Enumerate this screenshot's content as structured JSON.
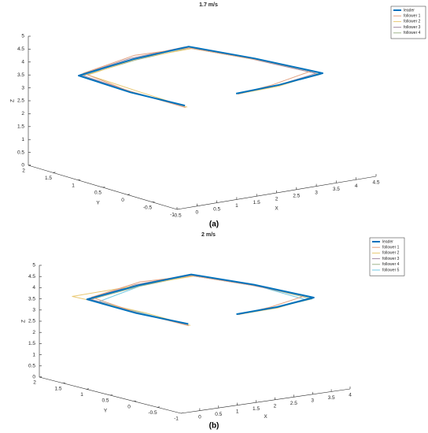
{
  "chart_data": [
    {
      "type": "line3d",
      "title": "1.7 m/s",
      "caption": "(a)",
      "xlabel": "X",
      "ylabel": "Y",
      "zlabel": "Z",
      "xlim": [
        -0.5,
        4.5
      ],
      "xticks": [
        -0.5,
        0,
        0.5,
        1,
        1.5,
        2,
        2.5,
        3,
        3.5,
        4,
        4.5
      ],
      "ylim": [
        -1,
        2
      ],
      "yticks": [
        -1,
        -0.5,
        0,
        0.5,
        1,
        1.5,
        2
      ],
      "zlim": [
        0,
        5
      ],
      "zticks": [
        0,
        0.5,
        1,
        1.5,
        2,
        2.5,
        3,
        3.5,
        4,
        4.5,
        5
      ],
      "legend": "upper right",
      "series": [
        {
          "name": "leader",
          "color": "#0072bd",
          "width": 2,
          "x": [
            0.36,
            0.2,
            0.13,
            1.2,
            2.22,
            3.2,
            4.19,
            3.0,
            1.83
          ],
          "y": [
            -0.47,
            0.5,
            1.49,
            1.25,
            0.95,
            0.4,
            -0.17,
            -0.25,
            -0.32
          ],
          "z": [
            3.5,
            3.5,
            3.6,
            4.1,
            4.5,
            4.1,
            3.6,
            3.5,
            3.5
          ]
        },
        {
          "name": "follower 1",
          "color": "#e3a07e",
          "width": 1,
          "x": [
            0.4,
            0.25,
            0.2,
            1.3,
            2.3,
            3.3,
            4.0,
            2.9,
            1.9
          ],
          "y": [
            -0.45,
            0.6,
            1.45,
            1.3,
            1.0,
            0.45,
            -0.1,
            -0.2,
            -0.3
          ],
          "z": [
            3.4,
            3.5,
            3.7,
            4.2,
            4.4,
            4.0,
            3.7,
            3.5,
            3.45
          ]
        },
        {
          "name": "follower 2",
          "color": "#e9c872",
          "width": 1,
          "x": [
            0.38,
            0.3,
            0.25,
            1.25,
            2.25,
            3.25,
            4.1,
            2.95,
            1.85
          ],
          "y": [
            -0.5,
            0.4,
            1.4,
            1.2,
            0.9,
            0.35,
            -0.2,
            -0.3,
            -0.35
          ],
          "z": [
            3.45,
            3.55,
            3.65,
            4.15,
            4.45,
            4.05,
            3.65,
            3.5,
            3.5
          ]
        },
        {
          "name": "follower 3",
          "color": "#a38ca3",
          "width": 1,
          "x": [
            0.42,
            0.28,
            0.18,
            1.15,
            2.15,
            3.15,
            4.05,
            3.05,
            1.95
          ],
          "y": [
            -0.42,
            0.55,
            1.5,
            1.28,
            0.98,
            0.42,
            -0.15,
            -0.22,
            -0.28
          ],
          "z": [
            3.42,
            3.48,
            3.62,
            4.12,
            4.48,
            4.08,
            3.62,
            3.48,
            3.46
          ]
        },
        {
          "name": "follower 4",
          "color": "#9cb38c",
          "width": 1,
          "x": [
            0.35,
            0.22,
            0.16,
            1.22,
            2.2,
            3.22,
            4.12,
            3.02,
            1.88
          ],
          "y": [
            -0.48,
            0.52,
            1.47,
            1.22,
            0.93,
            0.38,
            -0.18,
            -0.27,
            -0.33
          ],
          "z": [
            3.47,
            3.52,
            3.58,
            4.08,
            4.46,
            4.06,
            3.58,
            3.52,
            3.48
          ]
        }
      ]
    },
    {
      "type": "line3d",
      "title": "2 m/s",
      "caption": "(b)",
      "xlabel": "X",
      "ylabel": "Y",
      "zlabel": "Z",
      "xlim": [
        -0.5,
        4
      ],
      "xticks": [
        0,
        0.5,
        1,
        1.5,
        2,
        2.5,
        3,
        3.5,
        4
      ],
      "ylim": [
        -1,
        2
      ],
      "yticks": [
        -1,
        -0.5,
        0,
        0.5,
        1,
        1.5,
        2
      ],
      "zlim": [
        0,
        5
      ],
      "zticks": [
        0,
        0.5,
        1,
        1.5,
        2,
        2.5,
        3,
        3.5,
        4,
        4.5,
        5
      ],
      "legend": "upper right",
      "series": [
        {
          "name": "leader",
          "color": "#0072bd",
          "width": 2,
          "x": [
            0.36,
            0.2,
            0.13,
            1.2,
            2.22,
            3.2,
            4.1,
            3.0,
            1.83
          ],
          "y": [
            -0.47,
            0.5,
            1.49,
            1.25,
            0.95,
            0.4,
            -0.15,
            -0.25,
            -0.32
          ],
          "z": [
            3.5,
            3.5,
            3.6,
            4.1,
            4.5,
            4.1,
            3.6,
            3.5,
            3.5
          ]
        },
        {
          "name": "follower 1",
          "color": "#e3a07e",
          "width": 1,
          "x": [
            0.4,
            0.25,
            0.2,
            1.3,
            2.3,
            3.3,
            3.95,
            2.9,
            1.9
          ],
          "y": [
            -0.45,
            0.6,
            1.45,
            1.3,
            1.0,
            0.45,
            -0.1,
            -0.2,
            -0.3
          ],
          "z": [
            3.4,
            3.5,
            3.7,
            4.2,
            4.4,
            4.0,
            3.7,
            3.5,
            3.45
          ]
        },
        {
          "name": "follower 2",
          "color": "#e9c872",
          "width": 1,
          "x": [
            0.38,
            0.3,
            0.0,
            1.25,
            2.25,
            3.25,
            4.0,
            2.95,
            1.85
          ],
          "y": [
            -0.5,
            0.4,
            1.7,
            1.2,
            0.9,
            0.35,
            -0.2,
            -0.3,
            -0.35
          ],
          "z": [
            3.45,
            3.55,
            3.65,
            4.15,
            4.45,
            4.05,
            3.65,
            3.5,
            3.5
          ]
        },
        {
          "name": "follower 3",
          "color": "#a38ca3",
          "width": 1,
          "x": [
            0.42,
            0.28,
            0.18,
            1.15,
            2.15,
            3.15,
            4.05,
            3.05,
            1.95
          ],
          "y": [
            -0.42,
            0.55,
            1.5,
            1.28,
            0.98,
            0.42,
            -0.15,
            -0.22,
            -0.28
          ],
          "z": [
            3.42,
            3.48,
            3.62,
            4.12,
            4.48,
            4.08,
            3.62,
            3.48,
            3.46
          ]
        },
        {
          "name": "follower 4",
          "color": "#9cb38c",
          "width": 1,
          "x": [
            0.35,
            0.22,
            0.16,
            1.22,
            2.2,
            3.22,
            4.02,
            3.02,
            1.88
          ],
          "y": [
            -0.48,
            0.52,
            1.47,
            1.22,
            0.93,
            0.38,
            -0.18,
            -0.27,
            -0.33
          ],
          "z": [
            3.47,
            3.52,
            3.58,
            4.08,
            4.46,
            4.06,
            3.58,
            3.52,
            3.48
          ]
        },
        {
          "name": "follower 5",
          "color": "#6fc8e3",
          "width": 1,
          "x": [
            0.37,
            0.3,
            0.28,
            1.18,
            2.18,
            3.18,
            3.9,
            3.0,
            1.9
          ],
          "y": [
            -0.44,
            0.48,
            1.35,
            1.2,
            0.96,
            0.4,
            -0.12,
            -0.24,
            -0.3
          ],
          "z": [
            3.46,
            3.5,
            3.55,
            4.1,
            4.5,
            4.1,
            3.55,
            3.5,
            3.48
          ]
        }
      ]
    }
  ]
}
